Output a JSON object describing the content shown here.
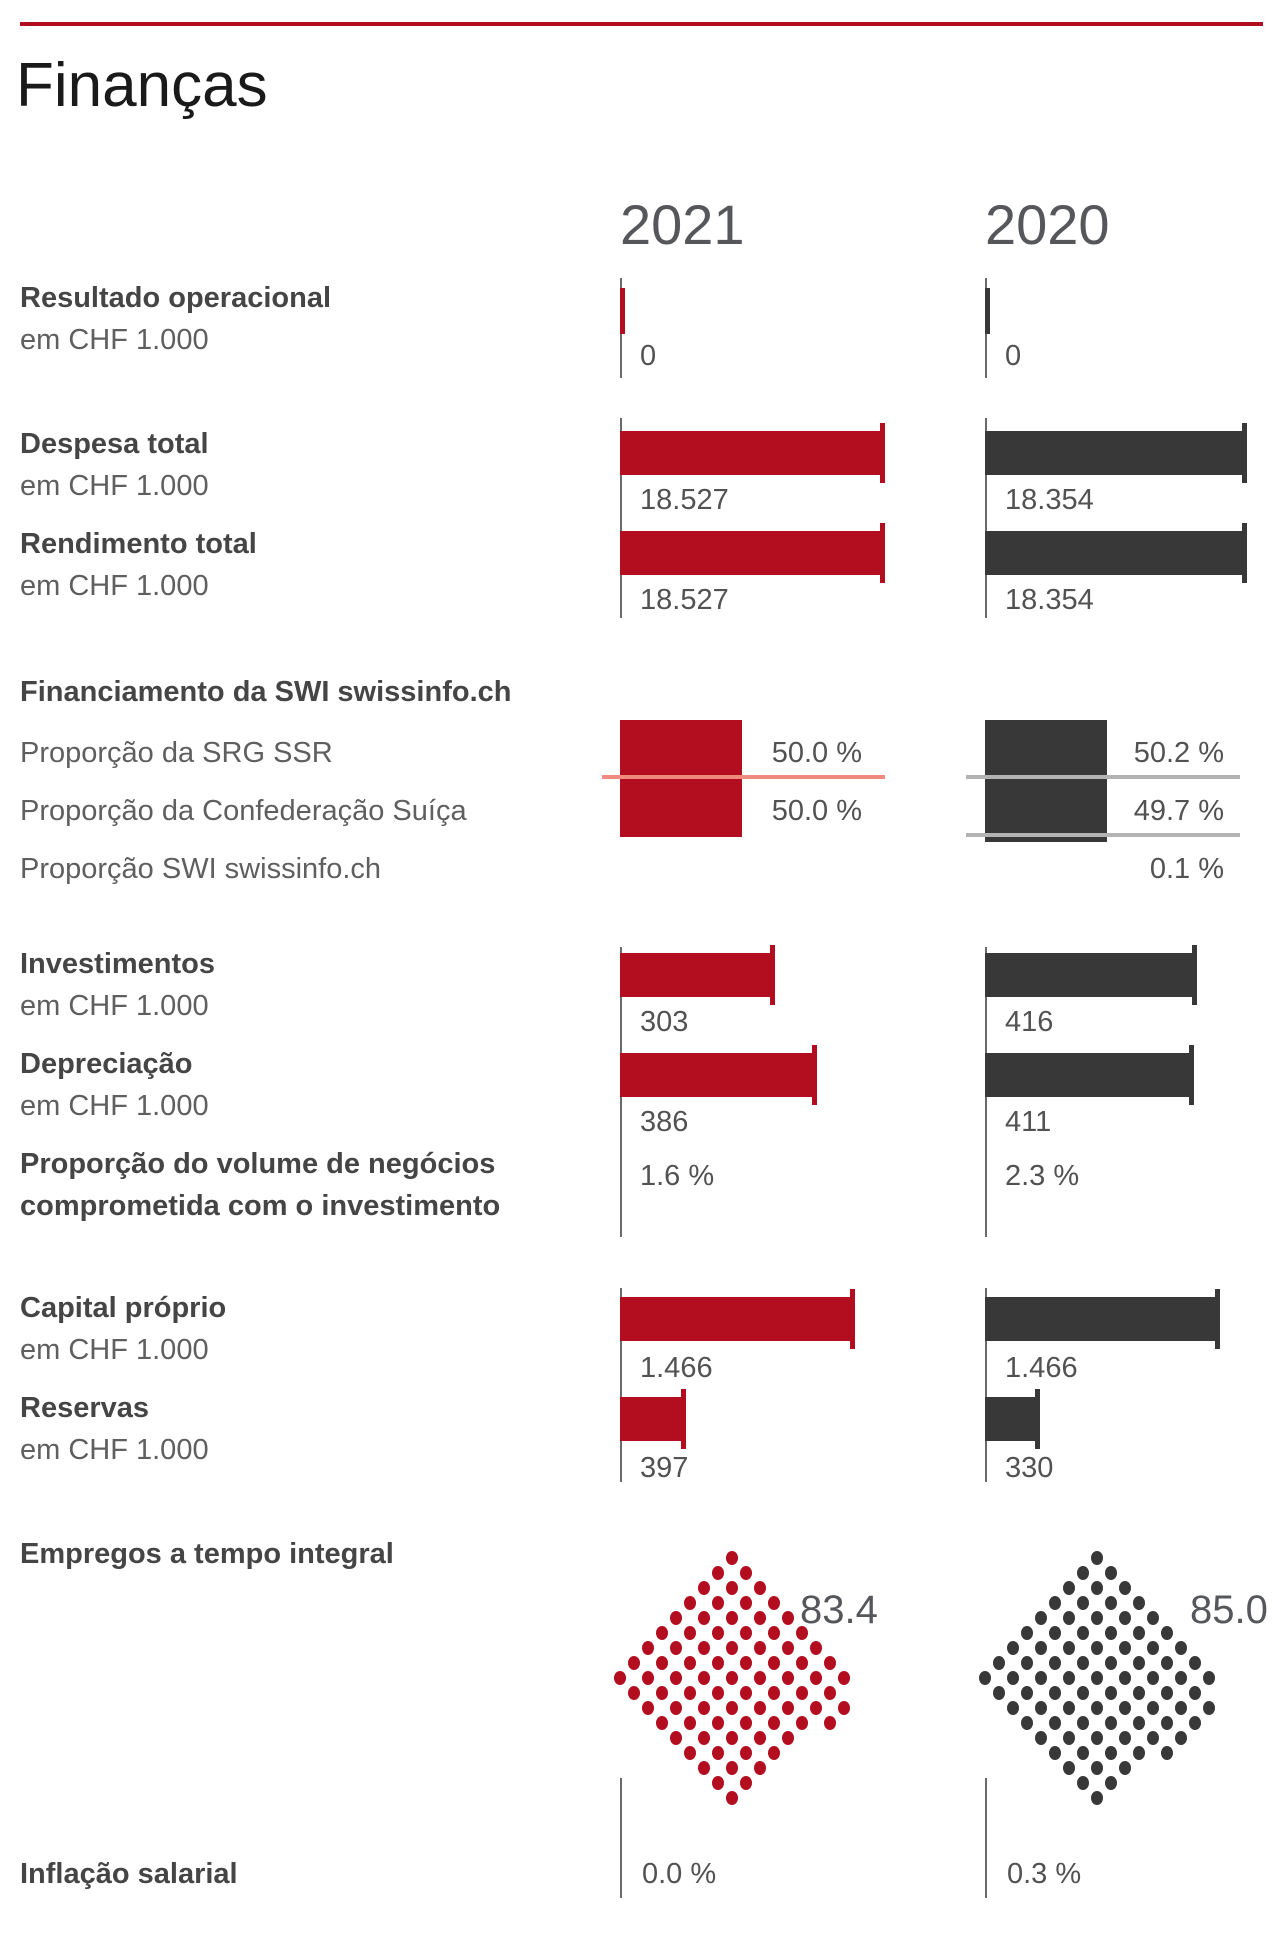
{
  "page": {
    "title": "Finanças",
    "years": [
      "2021",
      "2020"
    ],
    "colors": {
      "red": "#b30e20",
      "dark": "#383838",
      "salmon": "#f08a7e",
      "gray_line": "#b3b3b3",
      "axis": "#6a6a6a",
      "title": "#1a1a1a",
      "year_header": "#55575b",
      "label_bold": "#454545",
      "label_light": "#5f5f5f",
      "value": "#525252"
    }
  },
  "rows": [
    {
      "id": "resultado",
      "kind": "bar",
      "label": "Resultado operacional",
      "sub": "em CHF 1.000",
      "values": [
        0,
        0
      ],
      "display": [
        "0",
        "0"
      ]
    },
    {
      "id": "despesa",
      "kind": "bar",
      "label": "Despesa total",
      "sub": "em CHF 1.000",
      "values": [
        18527,
        18354
      ],
      "display": [
        "18.527",
        "18.354"
      ]
    },
    {
      "id": "rendimento",
      "kind": "bar",
      "label": "Rendimento total",
      "sub": "em CHF 1.000",
      "values": [
        18527,
        18354
      ],
      "display": [
        "18.527",
        "18.354"
      ]
    },
    {
      "id": "financing",
      "kind": "stack",
      "header": "Financiamento da SWI swissinfo.ch",
      "items": [
        {
          "label": "Proporção da SRG SSR",
          "values": [
            50.0,
            50.2
          ],
          "display": [
            "50.0 %",
            "50.2 %"
          ]
        },
        {
          "label": "Proporção da Confederação Suíça",
          "values": [
            50.0,
            49.7
          ],
          "display": [
            "50.0 %",
            "49.7 %"
          ]
        },
        {
          "label": "Proporção SWI swissinfo.ch",
          "values": [
            null,
            0.1
          ],
          "display": [
            "",
            "0.1 %"
          ]
        }
      ]
    },
    {
      "id": "invest",
      "kind": "bar",
      "label": "Investimentos",
      "sub": "em CHF 1.000",
      "values": [
        303,
        416
      ],
      "display": [
        "303",
        "416"
      ]
    },
    {
      "id": "deprec",
      "kind": "bar",
      "label": "Depreciação",
      "sub": "em CHF 1.000",
      "values": [
        386,
        411
      ],
      "display": [
        "386",
        "411"
      ]
    },
    {
      "id": "propvol",
      "kind": "text",
      "label": "Proporção do volume de negócios",
      "label2": "comprometida com o investimento",
      "values": [
        1.6,
        2.3
      ],
      "display": [
        "1.6 %",
        "2.3 %"
      ]
    },
    {
      "id": "capital",
      "kind": "bar",
      "label": "Capital próprio",
      "sub": "em CHF 1.000",
      "values": [
        1466,
        1466
      ],
      "display": [
        "1.466",
        "1.466"
      ]
    },
    {
      "id": "reservas",
      "kind": "bar",
      "label": "Reservas",
      "sub": "em CHF 1.000",
      "values": [
        397,
        330
      ],
      "display": [
        "397",
        "330"
      ]
    },
    {
      "id": "empregos",
      "kind": "dots",
      "label": "Empregos a tempo integral",
      "values": [
        83.4,
        85.0
      ],
      "display": [
        "83.4",
        "85.0"
      ]
    },
    {
      "id": "inflacao",
      "kind": "text",
      "label": "Inflação salarial",
      "values": [
        0.0,
        0.3
      ],
      "display": [
        "0.0 %",
        "0.3 %"
      ]
    }
  ],
  "chart_data": [
    {
      "type": "bar",
      "title": "Resultado operacional em CHF 1.000",
      "categories": [
        "2021",
        "2020"
      ],
      "values": [
        0,
        0
      ]
    },
    {
      "type": "bar",
      "title": "Despesa total em CHF 1.000",
      "categories": [
        "2021",
        "2020"
      ],
      "values": [
        18527,
        18354
      ]
    },
    {
      "type": "bar",
      "title": "Rendimento total em CHF 1.000",
      "categories": [
        "2021",
        "2020"
      ],
      "values": [
        18527,
        18354
      ]
    },
    {
      "type": "stacked-bar",
      "title": "Financiamento da SWI swissinfo.ch",
      "categories": [
        "2021",
        "2020"
      ],
      "unit": "%",
      "series": [
        {
          "name": "Proporção da SRG SSR",
          "values": [
            50.0,
            50.2
          ]
        },
        {
          "name": "Proporção da Confederação Suíça",
          "values": [
            50.0,
            49.7
          ]
        },
        {
          "name": "Proporção SWI swissinfo.ch",
          "values": [
            null,
            0.1
          ]
        }
      ]
    },
    {
      "type": "bar",
      "title": "Investimentos em CHF 1.000",
      "categories": [
        "2021",
        "2020"
      ],
      "values": [
        303,
        416
      ]
    },
    {
      "type": "bar",
      "title": "Depreciação em CHF 1.000",
      "categories": [
        "2021",
        "2020"
      ],
      "values": [
        386,
        411
      ]
    },
    {
      "type": "bar",
      "title": "Proporção do volume de negócios comprometida com o investimento",
      "categories": [
        "2021",
        "2020"
      ],
      "unit": "%",
      "values": [
        1.6,
        2.3
      ]
    },
    {
      "type": "bar",
      "title": "Capital próprio em CHF 1.000",
      "categories": [
        "2021",
        "2020"
      ],
      "values": [
        1466,
        1466
      ]
    },
    {
      "type": "bar",
      "title": "Reservas em CHF 1.000",
      "categories": [
        "2021",
        "2020"
      ],
      "values": [
        397,
        330
      ]
    },
    {
      "type": "pictogram",
      "title": "Empregos a tempo integral",
      "categories": [
        "2021",
        "2020"
      ],
      "values": [
        83.4,
        85.0
      ]
    },
    {
      "type": "bar",
      "title": "Inflação salarial",
      "categories": [
        "2021",
        "2020"
      ],
      "unit": "%",
      "values": [
        0.0,
        0.3
      ]
    }
  ]
}
